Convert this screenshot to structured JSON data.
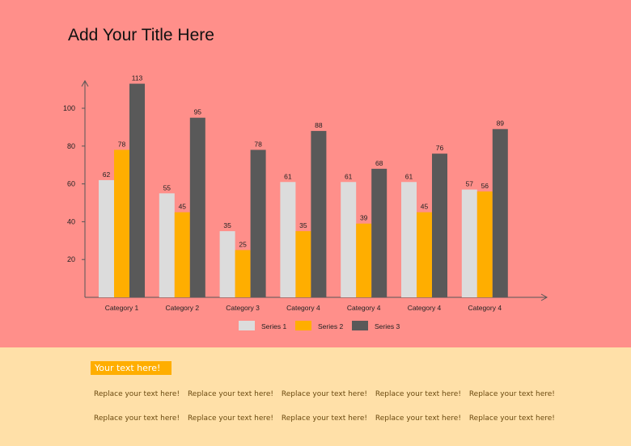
{
  "title": "Add Your Title Here",
  "chart_data": {
    "type": "bar",
    "title": "Add Your Title Here",
    "categories": [
      "Category 1",
      "Category 2",
      "Category 3",
      "Category 4",
      "Category 4",
      "Category 4",
      "Category 4"
    ],
    "series": [
      {
        "name": "Series 1",
        "color": "#dcdcdc",
        "values": [
          62,
          55,
          35,
          61,
          61,
          61,
          57
        ]
      },
      {
        "name": "Series 2",
        "color": "#ffae00",
        "values": [
          78,
          45,
          25,
          35,
          39,
          45,
          56
        ]
      },
      {
        "name": "Series 3",
        "color": "#595959",
        "values": [
          113,
          95,
          78,
          88,
          68,
          76,
          89
        ]
      }
    ],
    "yticks": [
      20,
      40,
      60,
      80,
      100
    ],
    "ylim": [
      0,
      115
    ],
    "xlabel": "",
    "ylabel": "",
    "legend": "bottom",
    "grid": false
  },
  "footer": {
    "badge": "Your text here!",
    "rows": [
      [
        "Replace your text here!",
        "Replace your text here!",
        "Replace your text here!",
        "Replace your text here!",
        "Replace your text here!"
      ],
      [
        "Replace your text here!",
        "Replace your text here!",
        "Replace your text here!",
        "Replace your text here!",
        "Replace your text here!"
      ]
    ]
  }
}
